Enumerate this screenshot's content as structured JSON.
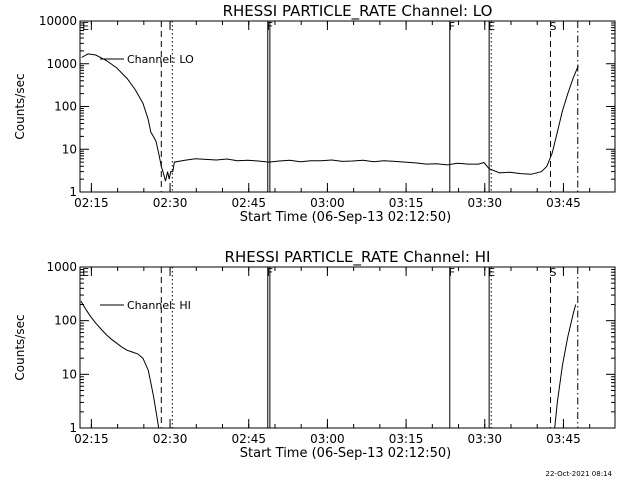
{
  "timestamp": "22-Oct-2021 08:14",
  "chart_data": [
    {
      "type": "line",
      "title": "RHESSI PARTICLE_RATE Channel: LO",
      "xlabel": "Start Time (06-Sep-13 02:12:50)",
      "ylabel": "Counts/sec",
      "yscale": "log",
      "ylim": [
        1,
        10000
      ],
      "xlim_min": [
        0,
        102
      ],
      "y_ticks": [
        "1",
        "10",
        "100",
        "1000",
        "10000"
      ],
      "x_ticks": [
        "02:15",
        "02:30",
        "02:45",
        "03:00",
        "03:15",
        "03:30",
        "03:45"
      ],
      "x_tick_min": [
        2.17,
        17.17,
        32.17,
        47.17,
        62.17,
        77.17,
        92.17
      ],
      "legend": "Channel: LO",
      "markers": [
        {
          "label": "E",
          "t": 0.6,
          "style": "none"
        },
        {
          "label": "",
          "t": 15.5,
          "style": "dashed"
        },
        {
          "label": "",
          "t": 17.6,
          "style": "dotted"
        },
        {
          "label": "F",
          "t": 35.8,
          "style": "solid"
        },
        {
          "label": "",
          "t": 36.2,
          "style": "solid"
        },
        {
          "label": "F",
          "t": 70.5,
          "style": "solid"
        },
        {
          "label": "E",
          "t": 78.0,
          "style": "solid"
        },
        {
          "label": "",
          "t": 78.4,
          "style": "dotted"
        },
        {
          "label": "S",
          "t": 89.7,
          "style": "dashed"
        },
        {
          "label": "",
          "t": 94.9,
          "style": "dashdot"
        }
      ],
      "series": [
        {
          "x": [
            0.3,
            1.5,
            3,
            5,
            7,
            9,
            10.5,
            12,
            13,
            13.5,
            14,
            14.5,
            15,
            15.5,
            16,
            16.3,
            16.7,
            17,
            17.3,
            17.7,
            18,
            20,
            22,
            24,
            26,
            28,
            30,
            32,
            34,
            36,
            38,
            40,
            42,
            44,
            46,
            48,
            50,
            52,
            54,
            56,
            58,
            60,
            62,
            64,
            66,
            68,
            70,
            72,
            74,
            76,
            77,
            78,
            80,
            82,
            84,
            86,
            88,
            89,
            90,
            91,
            92,
            93,
            94,
            95
          ],
          "y": [
            1400,
            1700,
            1600,
            1200,
            800,
            450,
            250,
            120,
            50,
            25,
            20,
            15,
            8,
            4,
            2.5,
            1.8,
            3,
            2,
            3,
            3,
            5,
            5.5,
            6,
            5.8,
            5.6,
            5.9,
            5.4,
            5.5,
            5.3,
            5.0,
            5.3,
            5.5,
            5.1,
            5.4,
            5.4,
            5.6,
            5.2,
            5.3,
            5.5,
            5.1,
            5.4,
            5.2,
            5.0,
            4.8,
            4.5,
            4.6,
            4.3,
            4.7,
            4.5,
            4.5,
            4.9,
            3.5,
            2.8,
            2.9,
            2.7,
            2.6,
            3.0,
            4.0,
            8,
            25,
            80,
            200,
            450,
            900
          ]
        }
      ]
    },
    {
      "type": "line",
      "title": "RHESSI PARTICLE_RATE Channel: HI",
      "xlabel": "Start Time (06-Sep-13 02:12:50)",
      "ylabel": "Counts/sec",
      "yscale": "log",
      "ylim": [
        1,
        1000
      ],
      "xlim_min": [
        0,
        102
      ],
      "y_ticks": [
        "1",
        "10",
        "100",
        "1000"
      ],
      "x_ticks": [
        "02:15",
        "02:30",
        "02:45",
        "03:00",
        "03:15",
        "03:30",
        "03:45"
      ],
      "x_tick_min": [
        2.17,
        17.17,
        32.17,
        47.17,
        62.17,
        77.17,
        92.17
      ],
      "legend": "Channel: HI",
      "markers": [
        {
          "label": "E",
          "t": 0.6,
          "style": "none"
        },
        {
          "label": "",
          "t": 15.5,
          "style": "dashed"
        },
        {
          "label": "",
          "t": 17.6,
          "style": "dotted"
        },
        {
          "label": "F",
          "t": 35.8,
          "style": "solid"
        },
        {
          "label": "",
          "t": 36.2,
          "style": "solid"
        },
        {
          "label": "F",
          "t": 70.5,
          "style": "solid"
        },
        {
          "label": "E",
          "t": 78.0,
          "style": "solid"
        },
        {
          "label": "",
          "t": 78.4,
          "style": "dotted"
        },
        {
          "label": "S",
          "t": 89.7,
          "style": "dashed"
        },
        {
          "label": "",
          "t": 94.9,
          "style": "dashdot"
        }
      ],
      "series": [
        {
          "x": [
            0.2,
            1,
            2,
            3,
            4,
            5,
            6,
            7,
            8,
            9,
            10,
            11,
            12,
            13,
            13.5,
            14,
            14.5,
            15
          ],
          "y": [
            230,
            170,
            120,
            90,
            70,
            55,
            45,
            38,
            32,
            28,
            26,
            24,
            20,
            12,
            7,
            4,
            2,
            1
          ]
        },
        {
          "x": [
            90.5,
            91,
            92,
            93,
            94,
            94.5
          ],
          "y": [
            1,
            3,
            15,
            50,
            130,
            200
          ]
        }
      ]
    }
  ]
}
